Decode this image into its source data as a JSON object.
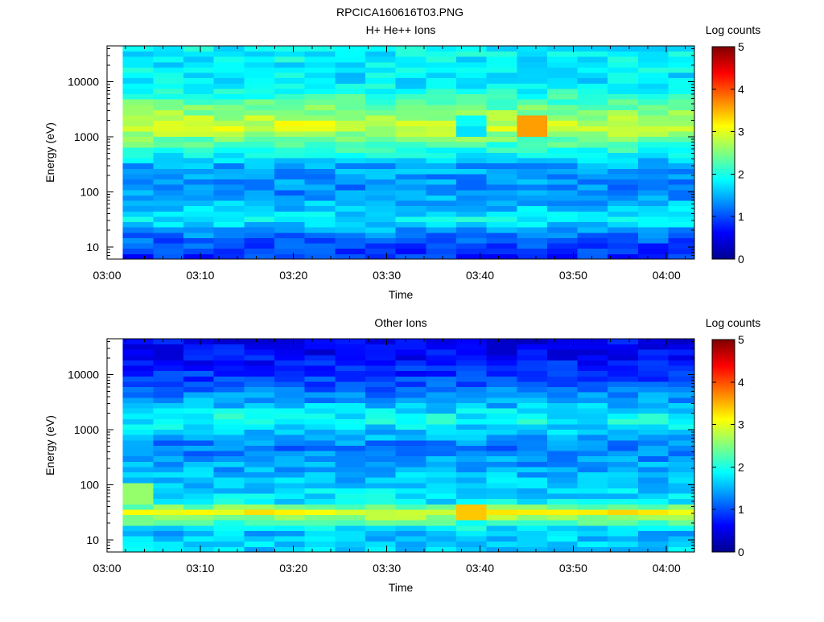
{
  "figure_title": "RPCICA160616T03.PNG",
  "chart_data": [
    {
      "type": "heatmap",
      "title": "H+ He++ Ions",
      "xlabel": "Time",
      "ylabel": "Energy (eV)",
      "x_range": [
        "03:00",
        "04:03"
      ],
      "x_ticks": [
        "03:00",
        "03:10",
        "03:20",
        "03:30",
        "03:40",
        "03:50",
        "04:00"
      ],
      "y_scale": "log",
      "y_range": [
        6,
        45000
      ],
      "y_ticks": [
        "10",
        "100",
        "1000",
        "10000"
      ],
      "colorbar": {
        "label": "Log counts",
        "range": [
          0,
          5
        ],
        "ticks": [
          "0",
          "1",
          "2",
          "3",
          "4",
          "5"
        ]
      },
      "data_start": "03:01.7",
      "time_bins_minutes": 3.25,
      "num_time_bins": 19,
      "band_profile_log_counts": [
        {
          "energy_eV": 8,
          "value": 0.85
        },
        {
          "energy_eV": 15,
          "value": 1.15
        },
        {
          "energy_eV": 30,
          "value": 1.85
        },
        {
          "energy_eV": 100,
          "value": 1.3
        },
        {
          "energy_eV": 300,
          "value": 1.45
        },
        {
          "energy_eV": 1600,
          "value": 2.95
        },
        {
          "energy_eV": 3500,
          "value": 2.4
        },
        {
          "energy_eV": 10000,
          "value": 1.75
        },
        {
          "energy_eV": 30000,
          "value": 1.85
        }
      ],
      "features": [
        {
          "label": "main band",
          "energy_eV": 1600,
          "peak_log_counts": 3.6,
          "time": "03:45"
        },
        {
          "label": "gap",
          "time_range": [
            "03:37",
            "03:41"
          ],
          "energy_eV": 1600
        }
      ]
    },
    {
      "type": "heatmap",
      "title": "Other Ions",
      "xlabel": "Time",
      "ylabel": "Energy (eV)",
      "x_range": [
        "03:00",
        "04:03"
      ],
      "x_ticks": [
        "03:00",
        "03:10",
        "03:20",
        "03:30",
        "03:40",
        "03:50",
        "04:00"
      ],
      "y_scale": "log",
      "y_range": [
        6,
        45000
      ],
      "y_ticks": [
        "10",
        "100",
        "1000",
        "10000"
      ],
      "colorbar": {
        "label": "Log counts",
        "range": [
          0,
          5
        ],
        "ticks": [
          "0",
          "1",
          "2",
          "3",
          "4",
          "5"
        ]
      },
      "data_start": "03:01.7",
      "time_bins_minutes": 3.25,
      "num_time_bins": 19,
      "band_profile_log_counts": [
        {
          "energy_eV": 8,
          "value": 1.65
        },
        {
          "energy_eV": 14,
          "value": 1.55
        },
        {
          "energy_eV": 22,
          "value": 2.3
        },
        {
          "energy_eV": 32,
          "value": 3.05
        },
        {
          "energy_eV": 50,
          "value": 1.8
        },
        {
          "energy_eV": 150,
          "value": 1.55
        },
        {
          "energy_eV": 500,
          "value": 1.2
        },
        {
          "energy_eV": 1600,
          "value": 1.95
        },
        {
          "energy_eV": 3500,
          "value": 1.4
        },
        {
          "energy_eV": 10000,
          "value": 0.85
        },
        {
          "energy_eV": 30000,
          "value": 0.6
        }
      ],
      "features": [
        {
          "label": "low-energy band",
          "energy_eV": 32,
          "peak_log_counts": 3.4,
          "time": "03:38"
        },
        {
          "label": "patch",
          "energy_eV": 70,
          "time": "03:03",
          "log_counts": 2.6
        }
      ]
    }
  ]
}
